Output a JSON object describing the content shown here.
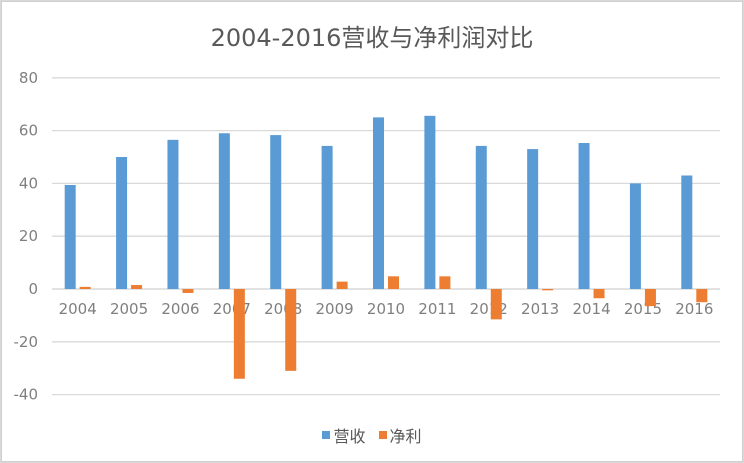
{
  "chart_data": {
    "type": "bar",
    "title": "2004-2016营收与净利润对比",
    "xlabel": "",
    "ylabel": "",
    "ylim": [
      -40,
      80
    ],
    "yticks": [
      80,
      60,
      40,
      20,
      0,
      -20,
      -40
    ],
    "grid": true,
    "legend_position": "bottom",
    "categories": [
      "2004",
      "2005",
      "2006",
      "2007",
      "2008",
      "2009",
      "2010",
      "2011",
      "2012",
      "2013",
      "2014",
      "2015",
      "2016"
    ],
    "series": [
      {
        "name": "营收",
        "color": "#5b9bd5",
        "values": [
          39.4,
          50,
          56.5,
          59,
          58.3,
          54.2,
          65,
          65.6,
          54.2,
          53,
          55.3,
          40,
          43
        ]
      },
      {
        "name": "净利",
        "color": "#ed7d31",
        "values": [
          0.8,
          1.5,
          -1.5,
          -34,
          -31,
          2.8,
          4.8,
          4.8,
          -11.5,
          -0.5,
          -3.5,
          -6.5,
          -5
        ]
      }
    ]
  },
  "legend": {
    "items": [
      {
        "label": "营收",
        "color": "#5b9bd5"
      },
      {
        "label": "净利",
        "color": "#ed7d31"
      }
    ]
  }
}
